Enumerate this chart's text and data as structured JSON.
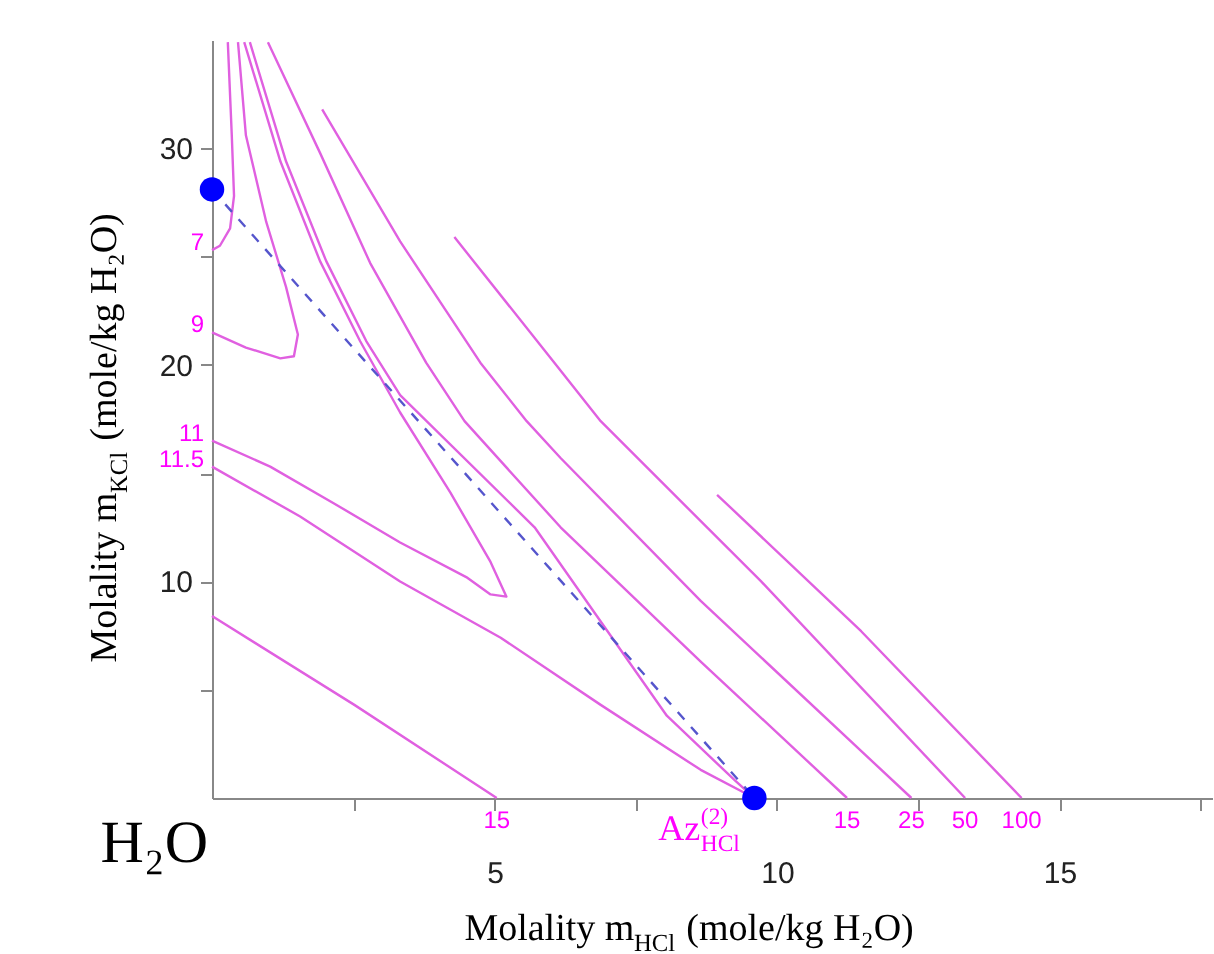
{
  "chart_data": {
    "type": "line",
    "xlabel": "Molality m$_{HCl}$ (mole/kg H₂O)",
    "ylabel": "Molality m$_{KCl}$ (mole/kg H₂O)",
    "xlim": [
      0,
      17.7
    ],
    "ylim": [
      0,
      35
    ],
    "xticks": [
      {
        "value": 2.5,
        "label": null
      },
      5,
      {
        "value": 7.5,
        "label": null
      },
      10,
      {
        "value": 12.5,
        "label": null
      },
      15,
      {
        "value": 17.5,
        "label": null
      }
    ],
    "yticks": [
      {
        "value": 5,
        "label": null
      },
      10,
      {
        "value": 15,
        "label": null
      },
      20,
      {
        "value": 25,
        "label": null
      },
      30
    ],
    "grid": false,
    "series": [
      {
        "color": "#e060e0",
        "x": [
          0.28,
          0.35,
          0.39,
          0.32,
          0.14,
          0
        ],
        "values": [
          34.9,
          30.6,
          27.8,
          26.3,
          25.5,
          25.3
        ]
      },
      {
        "color": "#e060e0",
        "x": [
          0.46,
          0.6,
          0.96,
          1.31,
          1.52,
          1.45,
          1.21,
          0.6,
          0
        ],
        "values": [
          34.9,
          30.6,
          26.6,
          23.6,
          21.4,
          20.4,
          20.3,
          20.8,
          21.5
        ]
      },
      {
        "color": "#e060e0",
        "x": [
          0.57,
          1.21,
          1.91,
          2.62,
          3.33,
          4.22,
          4.93,
          5.21,
          4.93,
          4.5,
          3.33,
          2.16,
          1.03,
          0
        ],
        "values": [
          34.9,
          29.4,
          24.8,
          21.1,
          17.8,
          14.1,
          10.9,
          9.3,
          9.4,
          10.2,
          11.8,
          13.6,
          15.3,
          16.5
        ]
      },
      {
        "color": "#e060e0",
        "x": [
          0.67,
          1.31,
          2.02,
          2.73,
          3.33,
          5.71,
          8.05,
          9.26,
          9.6,
          8.65,
          6.88,
          5.11,
          3.33,
          1.56,
          0
        ],
        "values": [
          34.9,
          29.4,
          24.8,
          21.1,
          18.6,
          12.5,
          3.8,
          0.8,
          0,
          1.3,
          4.3,
          7.4,
          10.0,
          13.0,
          15.3
        ]
      },
      {
        "color": "#e060e0",
        "x": [
          0,
          2.52,
          5.04
        ],
        "values": [
          8.4,
          4.3,
          0
        ]
      },
      {
        "color": "#e060e0",
        "x": [
          0.99,
          1.91,
          2.8,
          3.79,
          4.47,
          6.17,
          8.65,
          11.24
        ],
        "values": [
          34.9,
          29.8,
          24.7,
          20.1,
          17.4,
          12.5,
          6.3,
          0
        ]
      },
      {
        "color": "#e060e0",
        "x": [
          1.95,
          3.33,
          4.75,
          5.57,
          6.17,
          8.65,
          12.38
        ],
        "values": [
          31.8,
          25.7,
          20.1,
          17.4,
          15.7,
          9.1,
          0
        ]
      },
      {
        "color": "#e060e0",
        "x": [
          4.29,
          6.06,
          6.88,
          9.72,
          13.33
        ],
        "values": [
          25.9,
          20.1,
          17.4,
          10.0,
          0
        ]
      },
      {
        "color": "#e060e0",
        "x": [
          8.94,
          11.49,
          14.33
        ],
        "values": [
          14.0,
          7.7,
          0
        ]
      },
      {
        "color": "#5555cc",
        "line_style": "dashed",
        "x": [
          0,
          9.6
        ],
        "values": [
          28.1,
          0
        ]
      },
      {
        "type": "scatter",
        "color": "#0000ff",
        "marker": "circle",
        "x": [
          0,
          9.6
        ],
        "values": [
          28.1,
          0
        ]
      }
    ],
    "annotations": [
      {
        "text": "7",
        "x": 0,
        "y": 25.3
      },
      {
        "text": "9",
        "x": 0,
        "y": 21.5
      },
      {
        "text": "11",
        "x": 0,
        "y": 16.5
      },
      {
        "text": "11.5",
        "x": 0,
        "y": 15.3
      },
      {
        "text": "15",
        "x": 5.04,
        "y": 0
      },
      {
        "text": "15",
        "x": 11.24,
        "y": 0
      },
      {
        "text": "25",
        "x": 12.38,
        "y": 0
      },
      {
        "text": "50",
        "x": 13.33,
        "y": 0
      },
      {
        "text": "100",
        "x": 14.33,
        "y": 0
      },
      {
        "text": "Az$^{(2)}$$_{HCl}$",
        "x": 9.6,
        "y": 0
      },
      "H₂O"
    ]
  }
}
